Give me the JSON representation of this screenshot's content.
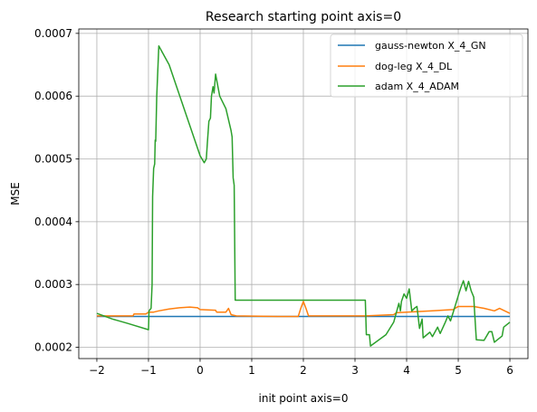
{
  "chart_data": {
    "type": "line",
    "title": "Research starting point axis=0",
    "xlabel": "init point axis=0",
    "ylabel": "MSE",
    "xlim": [
      -2.35,
      6.35
    ],
    "ylim": [
      0.000182,
      0.000707
    ],
    "x_ticks": [
      -2,
      -1,
      0,
      1,
      2,
      3,
      4,
      5,
      6
    ],
    "x_tick_labels": [
      "−2",
      "−1",
      "0",
      "1",
      "2",
      "3",
      "4",
      "5",
      "6"
    ],
    "y_ticks": [
      0.0002,
      0.0003,
      0.0004,
      0.0005,
      0.0006,
      0.0007
    ],
    "y_tick_labels": [
      "0.0002",
      "0.0003",
      "0.0004",
      "0.0005",
      "0.0006",
      "0.0007"
    ],
    "grid": true,
    "legend_position": "upper right",
    "series": [
      {
        "name": "gauss-newton X_4_GN",
        "color": "#1f77b4",
        "points": [
          [
            -2.0,
            0.000249
          ],
          [
            6.0,
            0.000249
          ]
        ]
      },
      {
        "name": "dog-leg X_4_DL",
        "color": "#ff7f0e",
        "points": [
          [
            -2.0,
            0.00025
          ],
          [
            -1.3,
            0.00025
          ],
          [
            -1.28,
            0.000253
          ],
          [
            -1.05,
            0.000253
          ],
          [
            -1.0,
            0.000256
          ],
          [
            -0.9,
            0.000256
          ],
          [
            -0.8,
            0.000258
          ],
          [
            -0.6,
            0.000261
          ],
          [
            -0.4,
            0.000263
          ],
          [
            -0.2,
            0.000264
          ],
          [
            -0.05,
            0.000263
          ],
          [
            0.0,
            0.00026
          ],
          [
            0.3,
            0.000259
          ],
          [
            0.32,
            0.000256
          ],
          [
            0.5,
            0.000256
          ],
          [
            0.55,
            0.000262
          ],
          [
            0.6,
            0.000252
          ],
          [
            0.7,
            0.00025
          ],
          [
            1.5,
            0.000249
          ],
          [
            1.9,
            0.000249
          ],
          [
            1.95,
            0.000262
          ],
          [
            2.0,
            0.000273
          ],
          [
            2.05,
            0.000262
          ],
          [
            2.1,
            0.00025
          ],
          [
            3.2,
            0.00025
          ],
          [
            3.5,
            0.000251
          ],
          [
            3.75,
            0.000252
          ],
          [
            3.8,
            0.000255
          ],
          [
            4.0,
            0.000256
          ],
          [
            4.5,
            0.000258
          ],
          [
            4.9,
            0.00026
          ],
          [
            5.0,
            0.000265
          ],
          [
            5.3,
            0.000265
          ],
          [
            5.5,
            0.000262
          ],
          [
            5.7,
            0.000258
          ],
          [
            5.8,
            0.000262
          ],
          [
            6.0,
            0.000254
          ]
        ]
      },
      {
        "name": "adam X_4_ADAM",
        "color": "#2ca02c",
        "points": [
          [
            -2.0,
            0.000254
          ],
          [
            -1.7,
            0.000245
          ],
          [
            -1.4,
            0.000238
          ],
          [
            -1.0,
            0.000228
          ],
          [
            -0.99,
            0.000258
          ],
          [
            -0.95,
            0.000262
          ],
          [
            -0.93,
            0.0003
          ],
          [
            -0.92,
            0.00044
          ],
          [
            -0.9,
            0.000485
          ],
          [
            -0.88,
            0.000492
          ],
          [
            -0.87,
            0.00053
          ],
          [
            -0.86,
            0.000528
          ],
          [
            -0.84,
            0.0006
          ],
          [
            -0.82,
            0.00064
          ],
          [
            -0.8,
            0.00068
          ],
          [
            -0.6,
            0.00065
          ],
          [
            0.0,
            0.000505
          ],
          [
            0.08,
            0.000494
          ],
          [
            0.12,
            0.0005
          ],
          [
            0.14,
            0.000525
          ],
          [
            0.17,
            0.00056
          ],
          [
            0.2,
            0.000565
          ],
          [
            0.22,
            0.0006
          ],
          [
            0.25,
            0.000615
          ],
          [
            0.27,
            0.000605
          ],
          [
            0.3,
            0.000635
          ],
          [
            0.38,
            0.0006
          ],
          [
            0.5,
            0.00058
          ],
          [
            0.6,
            0.000545
          ],
          [
            0.62,
            0.000535
          ],
          [
            0.64,
            0.00047
          ],
          [
            0.66,
            0.000458
          ],
          [
            0.68,
            0.000275
          ],
          [
            3.2,
            0.000275
          ],
          [
            3.22,
            0.00022
          ],
          [
            3.28,
            0.00022
          ],
          [
            3.3,
            0.000202
          ],
          [
            3.6,
            0.00022
          ],
          [
            3.75,
            0.00024
          ],
          [
            3.8,
            0.000255
          ],
          [
            3.85,
            0.00027
          ],
          [
            3.88,
            0.000258
          ],
          [
            3.9,
            0.000273
          ],
          [
            3.95,
            0.000285
          ],
          [
            4.0,
            0.000278
          ],
          [
            4.05,
            0.000293
          ],
          [
            4.1,
            0.000258
          ],
          [
            4.15,
            0.000262
          ],
          [
            4.2,
            0.000265
          ],
          [
            4.25,
            0.00023
          ],
          [
            4.3,
            0.000245
          ],
          [
            4.32,
            0.000215
          ],
          [
            4.45,
            0.000224
          ],
          [
            4.5,
            0.000217
          ],
          [
            4.6,
            0.000232
          ],
          [
            4.65,
            0.000222
          ],
          [
            4.75,
            0.00024
          ],
          [
            4.8,
            0.00025
          ],
          [
            4.85,
            0.000242
          ],
          [
            4.9,
            0.000255
          ],
          [
            5.0,
            0.000282
          ],
          [
            5.05,
            0.000295
          ],
          [
            5.1,
            0.000306
          ],
          [
            5.15,
            0.00029
          ],
          [
            5.2,
            0.000305
          ],
          [
            5.25,
            0.00029
          ],
          [
            5.3,
            0.00028
          ],
          [
            5.32,
            0.000252
          ],
          [
            5.35,
            0.000212
          ],
          [
            5.5,
            0.000211
          ],
          [
            5.6,
            0.000225
          ],
          [
            5.65,
            0.000225
          ],
          [
            5.7,
            0.000208
          ],
          [
            5.85,
            0.000218
          ],
          [
            5.88,
            0.000232
          ],
          [
            6.0,
            0.00024
          ]
        ]
      }
    ]
  }
}
